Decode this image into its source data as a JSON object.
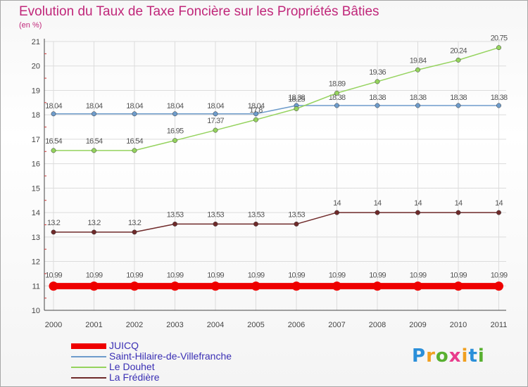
{
  "chart_data": {
    "type": "line",
    "title": "Evolution du Taux de Taxe Foncière sur les Propriétés Bâties",
    "subtitle": "(en %)",
    "xlabel": "",
    "ylabel": "(en %)",
    "categories": [
      "2000",
      "2001",
      "2002",
      "2003",
      "2004",
      "2005",
      "2006",
      "2007",
      "2008",
      "2009",
      "2010",
      "2011"
    ],
    "ylim": [
      10,
      21
    ],
    "yticks": [
      "10",
      "11",
      "12",
      "13",
      "14",
      "15",
      "16",
      "17",
      "18",
      "19",
      "20",
      "21"
    ],
    "grid": true,
    "legend_position": "bottom-left",
    "series": [
      {
        "name": "JUICQ",
        "color": "#ee0000",
        "values": [
          10.99,
          10.99,
          10.99,
          10.99,
          10.99,
          10.99,
          10.99,
          10.99,
          10.99,
          10.99,
          10.99,
          10.99
        ],
        "labels": [
          "10.99",
          "10.99",
          "10.99",
          "10.99",
          "10.99",
          "10.99",
          "10.99",
          "10.99",
          "10.99",
          "10.99",
          "10.99",
          "10.99"
        ]
      },
      {
        "name": "Saint-Hilaire-de-Villefranche",
        "color": "#6e9ccb",
        "values": [
          18.04,
          18.04,
          18.04,
          18.04,
          18.04,
          18.04,
          18.38,
          18.38,
          18.38,
          18.38,
          18.38,
          18.38
        ],
        "labels": [
          "18.04",
          "18.04",
          "18.04",
          "18.04",
          "18.04",
          "18.04",
          "18.38",
          "18.38",
          "18.38",
          "18.38",
          "18.38",
          "18.38"
        ]
      },
      {
        "name": "Le Douhet",
        "color": "#95d35e",
        "values": [
          16.54,
          16.54,
          16.54,
          16.95,
          17.37,
          17.8,
          18.25,
          18.89,
          19.36,
          19.84,
          20.24,
          20.75
        ],
        "labels": [
          "16.54",
          "16.54",
          "16.54",
          "16.95",
          "17.37",
          "17.8",
          "18.25",
          "18.89",
          "19.36",
          "19.84",
          "20.24",
          "20.75"
        ]
      },
      {
        "name": "La Frédière",
        "color": "#6f2a2a",
        "values": [
          13.2,
          13.2,
          13.2,
          13.53,
          13.53,
          13.53,
          13.53,
          14,
          14,
          14,
          14,
          14
        ],
        "labels": [
          "13.2",
          "13.2",
          "13.2",
          "13.53",
          "13.53",
          "13.53",
          "13.53",
          "14",
          "14",
          "14",
          "14",
          "14"
        ]
      }
    ]
  },
  "logo": {
    "letters": [
      "P",
      "r",
      "o",
      "x",
      "i",
      "t",
      "i"
    ],
    "colors": [
      "#2a8fd9",
      "#f0a020",
      "#58b030",
      "#e83c8c",
      "#f0a020",
      "#2a8fd9",
      "#58b030"
    ]
  }
}
